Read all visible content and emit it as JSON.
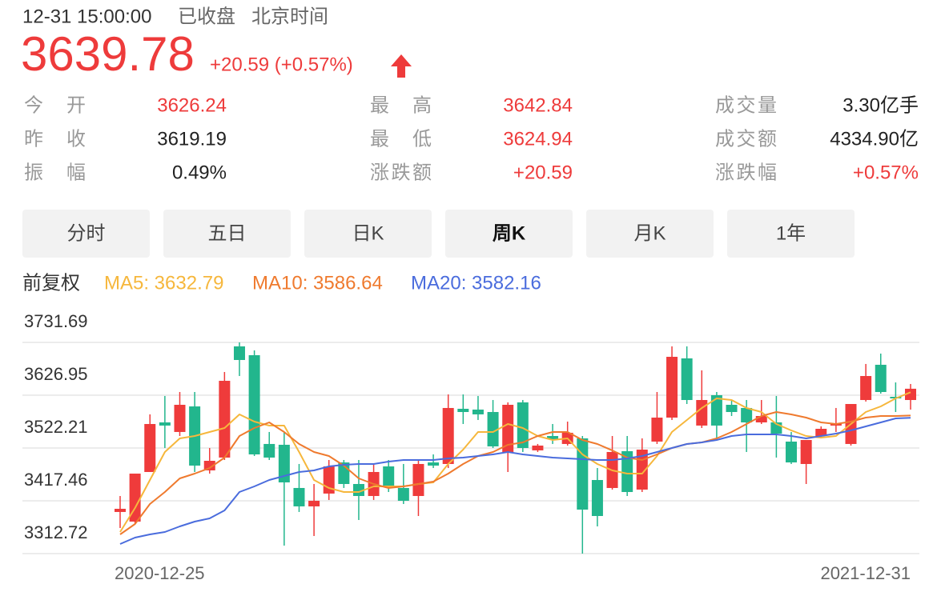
{
  "header": {
    "time": "12-31 15:00:00",
    "status": "已收盘",
    "timezone": "北京时间",
    "price": "3639.78",
    "change": "+20.59 (+0.57%)"
  },
  "stats": [
    {
      "label": "今开",
      "value": "3626.24",
      "color": "#ee3b3b"
    },
    {
      "label": "最高",
      "value": "3642.84",
      "color": "#ee3b3b"
    },
    {
      "label": "成交量",
      "value": "3.30亿手",
      "color": "#222222"
    },
    {
      "label": "昨收",
      "value": "3619.19",
      "color": "#222222"
    },
    {
      "label": "最低",
      "value": "3624.94",
      "color": "#ee3b3b"
    },
    {
      "label": "成交额",
      "value": "4334.90亿",
      "color": "#222222"
    },
    {
      "label": "振幅",
      "value": "0.49%",
      "color": "#222222"
    },
    {
      "label": "涨跌额",
      "value": "+20.59",
      "color": "#ee3b3b"
    },
    {
      "label": "涨跌幅",
      "value": "+0.57%",
      "color": "#ee3b3b"
    }
  ],
  "tabs": {
    "items": [
      "分时",
      "五日",
      "日K",
      "周K",
      "月K",
      "1年"
    ],
    "active": 3
  },
  "chart_data": {
    "type": "candlestick",
    "adjust_label": "前复权",
    "categories": [
      "2020-12-25",
      null,
      null,
      null,
      null,
      null,
      null,
      null,
      null,
      null,
      null,
      null,
      null,
      null,
      null,
      null,
      null,
      null,
      null,
      null,
      null,
      null,
      null,
      null,
      null,
      null,
      null,
      null,
      null,
      null,
      null,
      null,
      null,
      null,
      null,
      null,
      null,
      null,
      null,
      null,
      null,
      null,
      null,
      null,
      null,
      null,
      null,
      null,
      null,
      null,
      null,
      null,
      null,
      "2021-12-31"
    ],
    "open": [
      3395.3,
      3376.2,
      3474.6,
      3573.0,
      3554.0,
      3604.7,
      3477.8,
      3503.2,
      3723.8,
      3706.3,
      3530.2,
      3528.6,
      3442.9,
      3406.4,
      3431.8,
      3493.6,
      3450.8,
      3427.0,
      3485.7,
      3442.9,
      3427.0,
      3493.6,
      3490.5,
      3600.0,
      3598.4,
      3593.6,
      3514.3,
      3612.7,
      3517.5,
      3546.0,
      3530.2,
      3541.3,
      3458.7,
      3442.9,
      3515.9,
      3439.7,
      3534.9,
      3582.5,
      3700.0,
      3566.7,
      3627.0,
      3607.9,
      3601.6,
      3573.0,
      3573.0,
      3534.9,
      3490.5,
      3546.0,
      3566.7,
      3530.2,
      3617.4,
      3687.3,
      3623.8,
      3617.4
    ],
    "close": [
      3401.6,
      3471.4,
      3569.8,
      3566.7,
      3607.9,
      3487.3,
      3496.8,
      3655.5,
      3696.8,
      3509.5,
      3503.2,
      3454.0,
      3406.4,
      3417.5,
      3485.7,
      3450.8,
      3427.0,
      3474.6,
      3446.0,
      3417.5,
      3490.5,
      3487.3,
      3601.6,
      3593.6,
      3588.9,
      3525.4,
      3607.9,
      3522.2,
      3527.0,
      3539.7,
      3552.4,
      3400.0,
      3387.3,
      3514.3,
      3434.9,
      3519.0,
      3582.5,
      3703.1,
      3617.4,
      3617.4,
      3566.7,
      3593.6,
      3573.0,
      3585.7,
      3550.8,
      3493.6,
      3538.1,
      3560.3,
      3569.8,
      3609.5,
      3665.0,
      3633.3,
      3620.6,
      3639.78
    ],
    "high": [
      3427.0,
      3471.4,
      3588.9,
      3625.4,
      3633.3,
      3633.3,
      3522.2,
      3673.0,
      3731.69,
      3715.8,
      3554.0,
      3554.0,
      3490.5,
      3450.8,
      3498.4,
      3498.4,
      3498.4,
      3490.5,
      3498.4,
      3490.5,
      3498.4,
      3509.5,
      3628.5,
      3628.5,
      3625.4,
      3617.4,
      3612.7,
      3617.4,
      3530.2,
      3569.8,
      3574.6,
      3546.0,
      3482.5,
      3546.0,
      3546.0,
      3541.3,
      3633.3,
      3723.8,
      3723.8,
      3676.2,
      3633.3,
      3617.4,
      3617.4,
      3617.4,
      3625.4,
      3554.0,
      3538.1,
      3565.1,
      3601.6,
      3609.5,
      3688.9,
      3709.5,
      3652.3,
      3649.2
    ],
    "low": [
      3363.5,
      3371.5,
      3474.6,
      3522.2,
      3546.0,
      3474.6,
      3471.4,
      3498.4,
      3665.0,
      3506.3,
      3498.4,
      3328.6,
      3395.3,
      3347.6,
      3419.1,
      3442.9,
      3379.4,
      3419.1,
      3434.9,
      3411.1,
      3387.3,
      3482.5,
      3482.5,
      3569.8,
      3577.8,
      3522.2,
      3474.6,
      3514.3,
      3514.3,
      3530.2,
      3527.0,
      3312.72,
      3366.7,
      3439.7,
      3427.0,
      3434.9,
      3530.2,
      3577.8,
      3609.5,
      3561.9,
      3538.1,
      3585.7,
      3514.3,
      3569.8,
      3503.2,
      3490.5,
      3450.8,
      3541.3,
      3554.0,
      3527.0,
      3614.3,
      3630.1,
      3593.6,
      3598.4
    ],
    "up_color": "#ef3b3b",
    "down_color": "#22b68d",
    "series": [
      {
        "name": "MA5",
        "label": "MA5: 3632.79",
        "color": "#f6b73c",
        "values": [
          3355.6,
          3403.2,
          3458.7,
          3514.3,
          3541.3,
          3546.0,
          3554.0,
          3561.9,
          3588.9,
          3574.6,
          3566.7,
          3566.7,
          3514.3,
          3458.7,
          3442.9,
          3434.9,
          3434.9,
          3446.0,
          3446.0,
          3446.0,
          3450.8,
          3454.0,
          3490.5,
          3519.0,
          3554.0,
          3554.0,
          3569.8,
          3561.9,
          3546.0,
          3538.1,
          3541.3,
          3509.5,
          3490.5,
          3477.8,
          3471.4,
          3471.4,
          3506.3,
          3554.0,
          3577.8,
          3601.6,
          3620.6,
          3617.4,
          3601.6,
          3593.6,
          3569.8,
          3557.1,
          3546.0,
          3542.8,
          3546.0,
          3569.8,
          3593.6,
          3604.7,
          3620.6,
          3632.79
        ]
      },
      {
        "name": "MA10",
        "label": "MA10: 3586.64",
        "color": "#ef7a2e",
        "values": [
          3350.8,
          3371.5,
          3411.1,
          3434.9,
          3461.9,
          3471.4,
          3482.5,
          3503.2,
          3546.0,
          3561.9,
          3573.0,
          3554.0,
          3530.2,
          3514.3,
          3506.3,
          3487.3,
          3461.9,
          3450.8,
          3442.9,
          3446.0,
          3450.8,
          3455.6,
          3471.4,
          3490.5,
          3506.3,
          3514.3,
          3528.6,
          3533.3,
          3546.0,
          3554.0,
          3554.0,
          3538.1,
          3530.2,
          3517.5,
          3503.2,
          3498.4,
          3509.5,
          3522.2,
          3530.2,
          3533.3,
          3541.3,
          3554.0,
          3569.8,
          3585.7,
          3593.6,
          3588.9,
          3582.5,
          3573.0,
          3569.8,
          3574.6,
          3582.5,
          3585.7,
          3585.7,
          3586.64
        ]
      },
      {
        "name": "MA20",
        "label": "MA20: 3582.16",
        "color": "#4a6cdd",
        "values": [
          3331.8,
          3344.5,
          3350.8,
          3355.6,
          3366.7,
          3376.2,
          3382.6,
          3398.4,
          3434.9,
          3446.0,
          3458.7,
          3466.7,
          3474.6,
          3477.8,
          3485.7,
          3488.9,
          3490.5,
          3490.5,
          3495.2,
          3498.4,
          3498.4,
          3498.4,
          3501.6,
          3503.2,
          3506.3,
          3509.5,
          3514.3,
          3509.5,
          3506.3,
          3503.2,
          3501.6,
          3500.0,
          3498.4,
          3498.4,
          3501.6,
          3506.3,
          3514.3,
          3522.2,
          3530.2,
          3533.3,
          3538.1,
          3546.0,
          3549.2,
          3549.2,
          3549.2,
          3546.0,
          3541.3,
          3546.0,
          3550.8,
          3557.1,
          3565.1,
          3573.0,
          3580.9,
          3582.16
        ]
      }
    ],
    "ylim": [
      3312.72,
      3731.69
    ],
    "yticks": [
      3731.69,
      3626.95,
      3522.21,
      3417.46,
      3312.72
    ],
    "grid": true
  }
}
